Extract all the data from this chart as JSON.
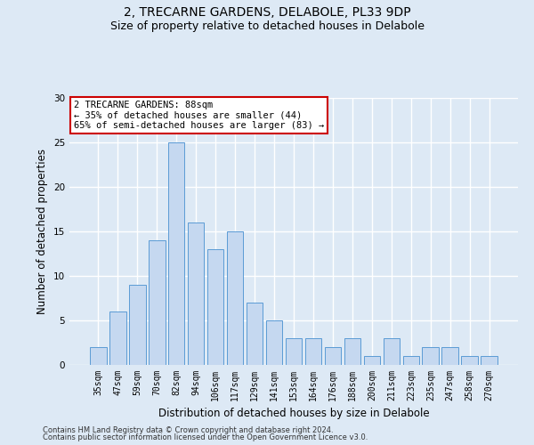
{
  "title1": "2, TRECARNE GARDENS, DELABOLE, PL33 9DP",
  "title2": "Size of property relative to detached houses in Delabole",
  "xlabel": "Distribution of detached houses by size in Delabole",
  "ylabel": "Number of detached properties",
  "categories": [
    "35sqm",
    "47sqm",
    "59sqm",
    "70sqm",
    "82sqm",
    "94sqm",
    "106sqm",
    "117sqm",
    "129sqm",
    "141sqm",
    "153sqm",
    "164sqm",
    "176sqm",
    "188sqm",
    "200sqm",
    "211sqm",
    "223sqm",
    "235sqm",
    "247sqm",
    "258sqm",
    "270sqm"
  ],
  "values": [
    2,
    6,
    9,
    14,
    25,
    16,
    13,
    15,
    7,
    5,
    3,
    3,
    2,
    3,
    1,
    3,
    1,
    2,
    2,
    1,
    1
  ],
  "bar_color": "#c5d8f0",
  "bar_edge_color": "#5b9bd5",
  "ylim": [
    0,
    30
  ],
  "yticks": [
    0,
    5,
    10,
    15,
    20,
    25,
    30
  ],
  "annotation_title": "2 TRECARNE GARDENS: 88sqm",
  "annotation_line1": "← 35% of detached houses are smaller (44)",
  "annotation_line2": "65% of semi-detached houses are larger (83) →",
  "annotation_box_color": "#ffffff",
  "annotation_border_color": "#cc0000",
  "footnote1": "Contains HM Land Registry data © Crown copyright and database right 2024.",
  "footnote2": "Contains public sector information licensed under the Open Government Licence v3.0.",
  "background_color": "#dde9f5",
  "grid_color": "#ffffff",
  "title_fontsize": 10,
  "subtitle_fontsize": 9,
  "tick_fontsize": 7,
  "ylabel_fontsize": 8.5,
  "xlabel_fontsize": 8.5,
  "footnote_fontsize": 6,
  "annotation_fontsize": 7.5
}
